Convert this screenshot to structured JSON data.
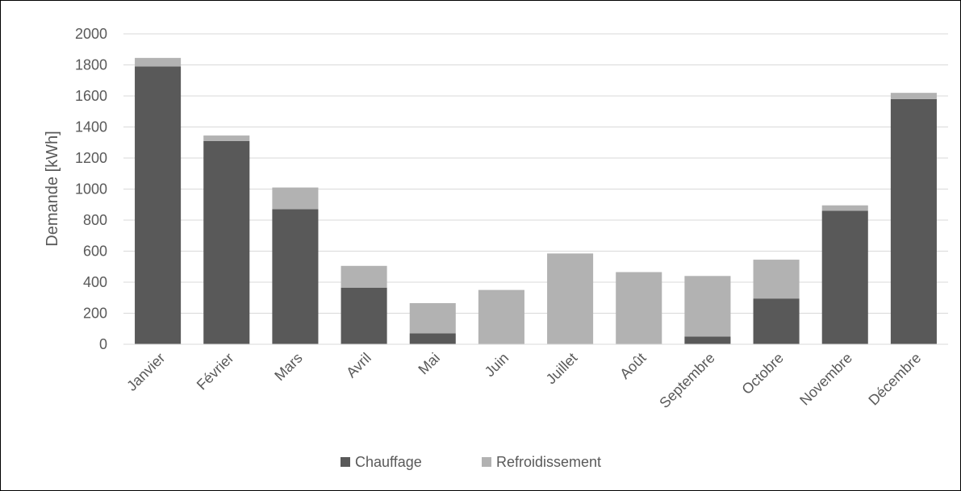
{
  "chart_data": {
    "type": "bar",
    "stacked": true,
    "title": "",
    "xlabel": "",
    "ylabel": "Demande [kWh]",
    "ylim": [
      0,
      2000
    ],
    "yticks": [
      "0",
      "200",
      "400",
      "600",
      "800",
      "1000",
      "1200",
      "1400",
      "1600",
      "1800",
      "2000"
    ],
    "grid": true,
    "legend_position": "bottom",
    "categories": [
      "Janvier",
      "Février",
      "Mars",
      "Avril",
      "Mai",
      "Juin",
      "Juillet",
      "Août",
      "Septembre",
      "Octobre",
      "Novembre",
      "Décembre"
    ],
    "series": [
      {
        "name": "Chauffage",
        "color": "#595959",
        "values": [
          1790,
          1310,
          870,
          365,
          70,
          0,
          0,
          0,
          50,
          295,
          860,
          1580
        ]
      },
      {
        "name": "Refroidissement",
        "color": "#b2b2b2",
        "values": [
          55,
          35,
          140,
          140,
          195,
          350,
          585,
          465,
          390,
          250,
          35,
          40
        ]
      }
    ]
  }
}
